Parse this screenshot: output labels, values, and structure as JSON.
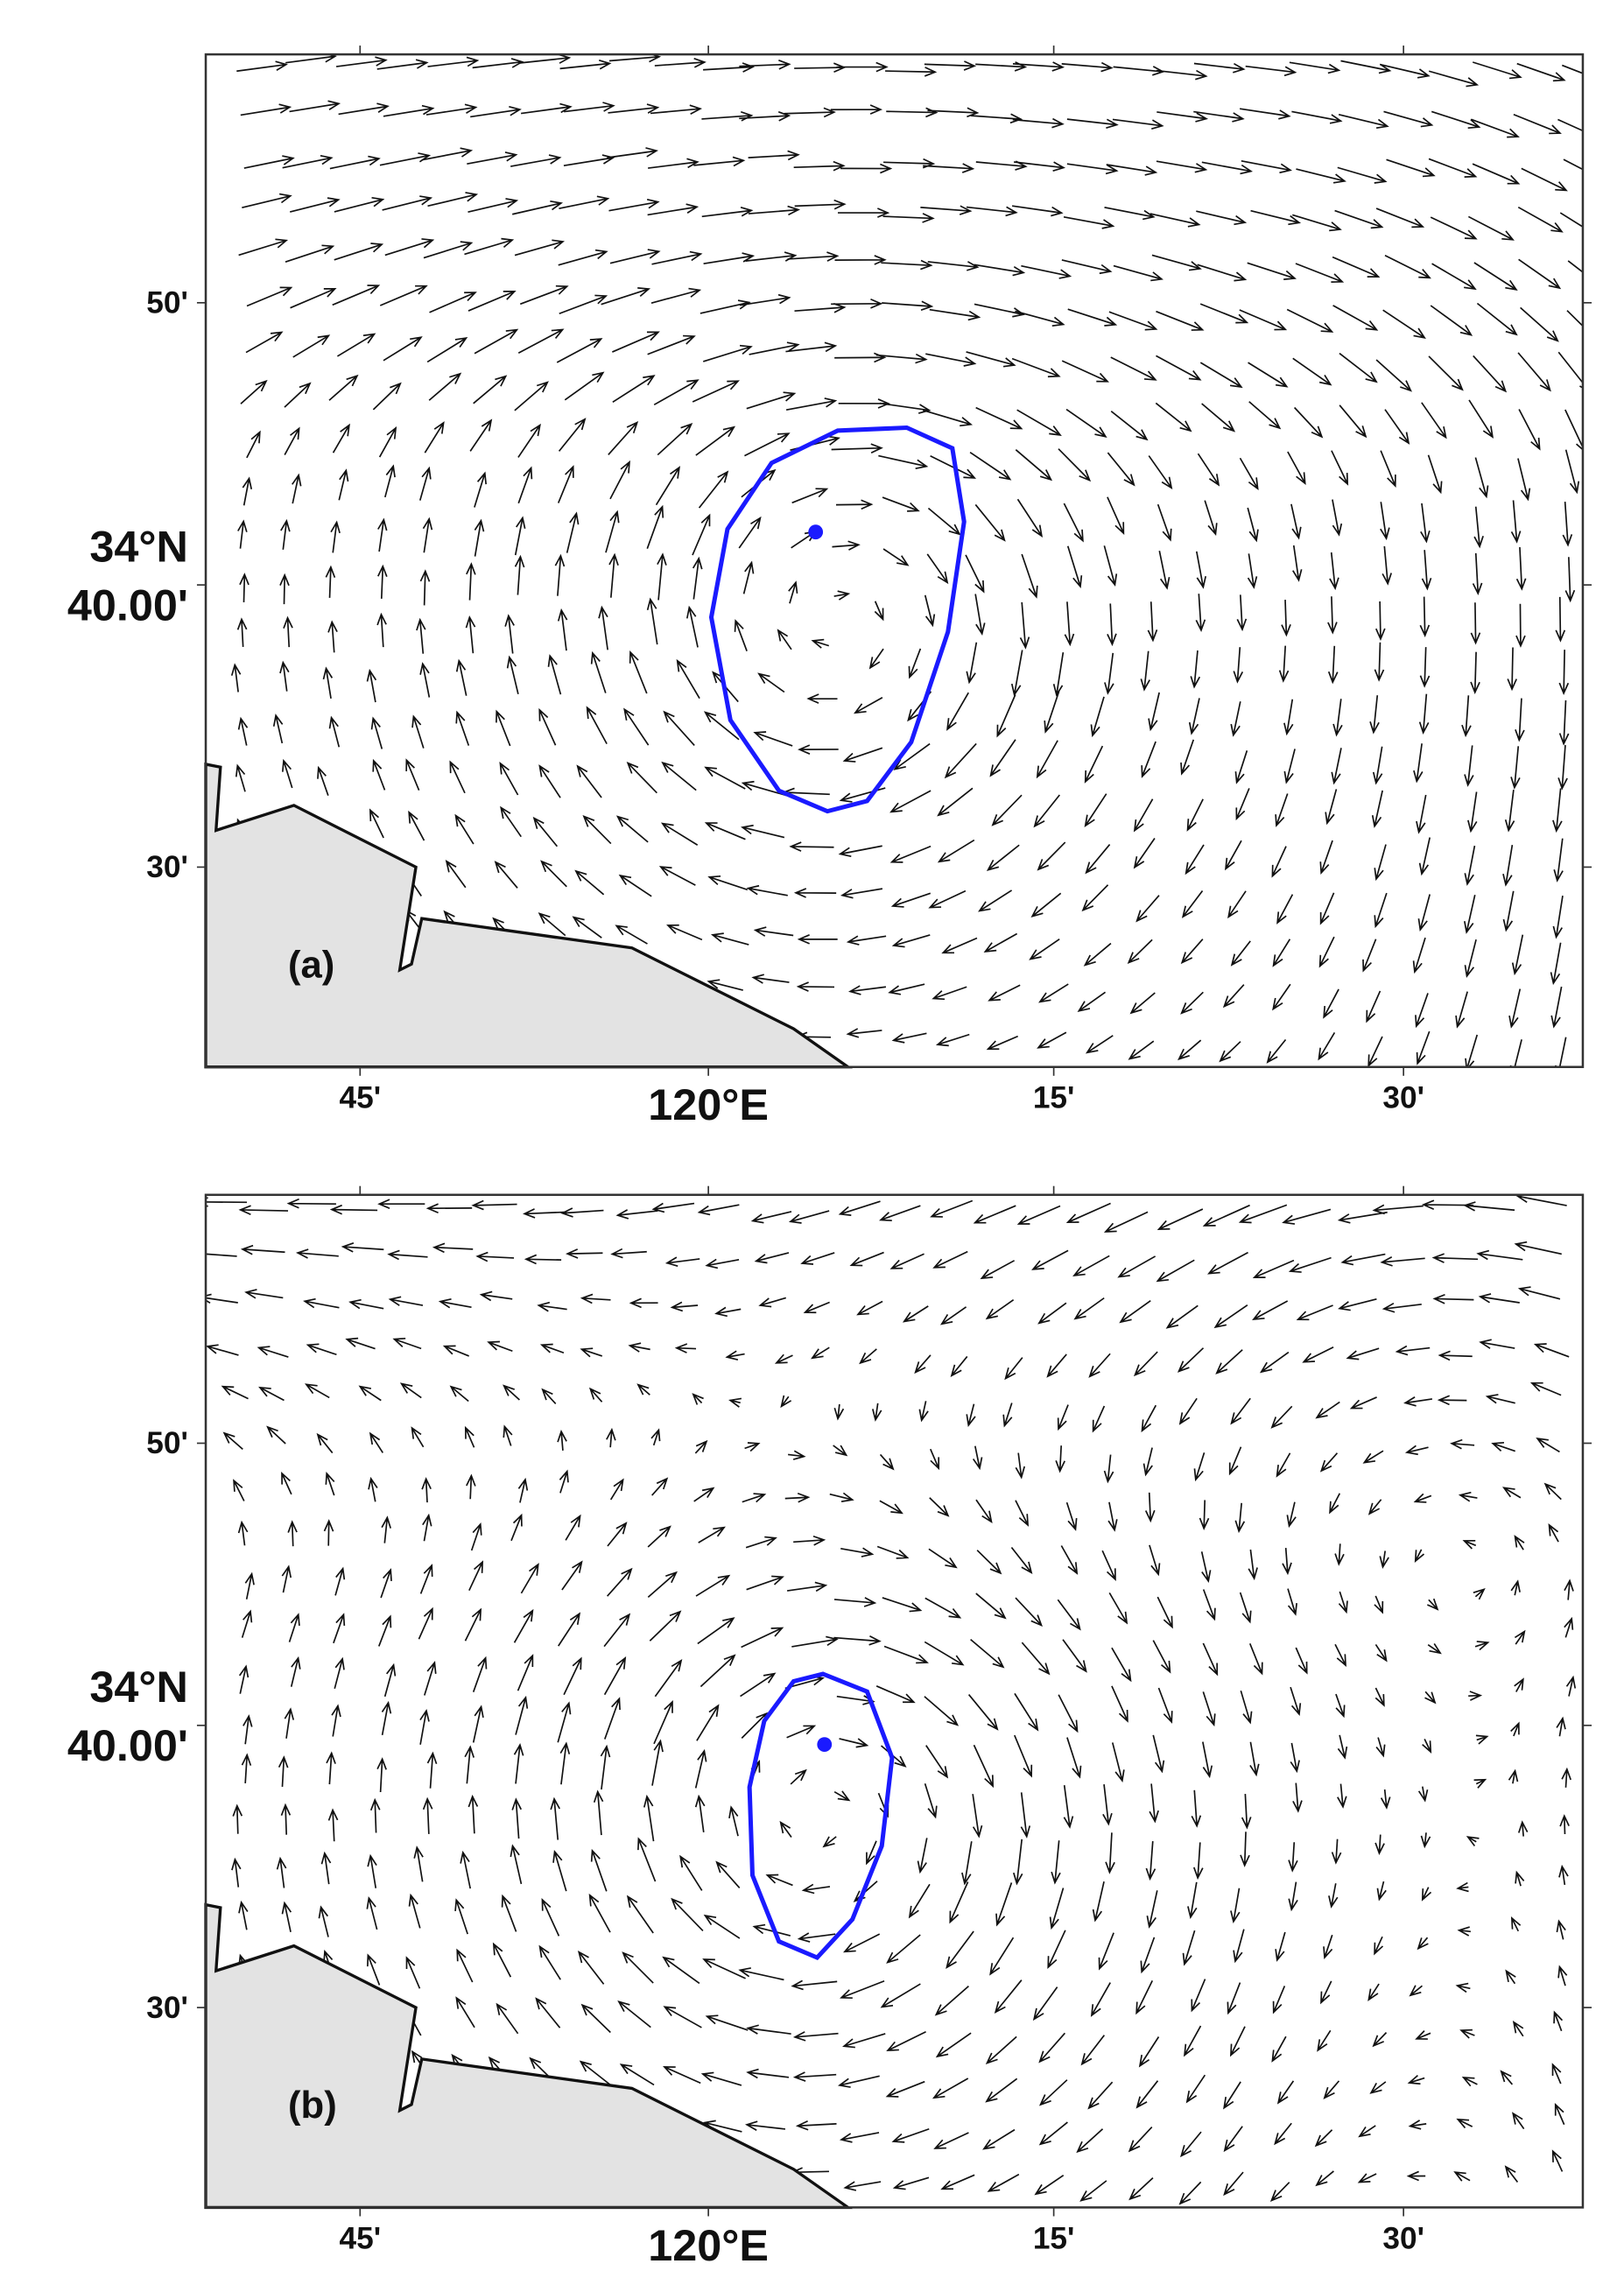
{
  "panels": [
    {
      "label": "(a)",
      "xticks": [
        "45'",
        "120°E",
        "15'",
        "30'"
      ],
      "yticks": [
        "50'",
        [
          "34°N",
          "40.00'"
        ],
        "30'"
      ]
    },
    {
      "label": "(b)",
      "xticks": [
        "45'",
        "120°E",
        "15'",
        "30'"
      ],
      "yticks": [
        "50'",
        [
          "34°N",
          "40.00'"
        ],
        "30'"
      ]
    }
  ]
}
